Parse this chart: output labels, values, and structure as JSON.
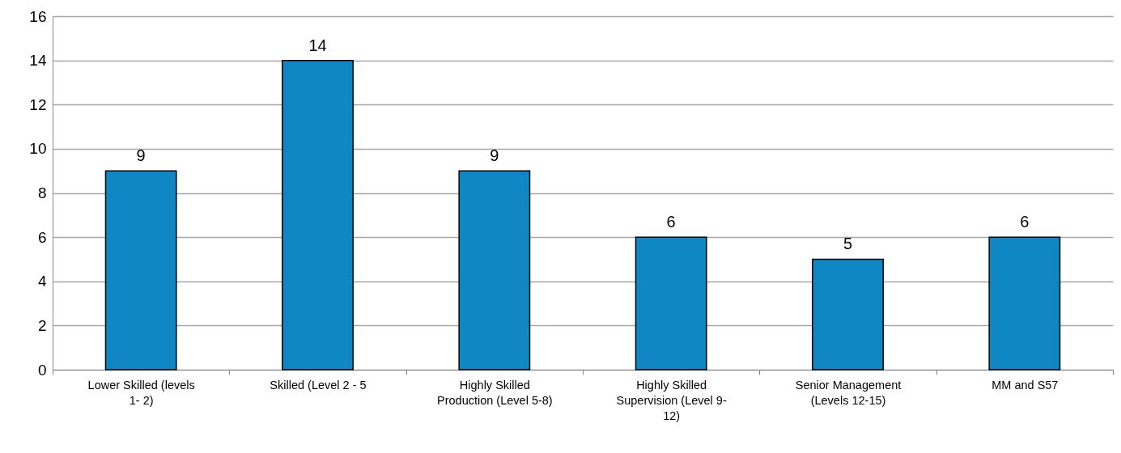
{
  "chart_data": {
    "type": "bar",
    "categories": [
      "Lower Skilled (levels 1- 2)",
      "Skilled (Level 2 - 5",
      "Highly Skilled Production (Level 5-8)",
      "Highly Skilled Supervision (Level 9-12)",
      "Senior Management (Levels 12-15)",
      "MM and S57"
    ],
    "values": [
      9,
      14,
      9,
      6,
      5,
      6
    ],
    "color": "#0f87c5",
    "ylim": [
      0,
      16
    ],
    "yticks": [
      0,
      2,
      4,
      6,
      8,
      10,
      12,
      14,
      16
    ],
    "grid": "y",
    "data_labels": true
  }
}
